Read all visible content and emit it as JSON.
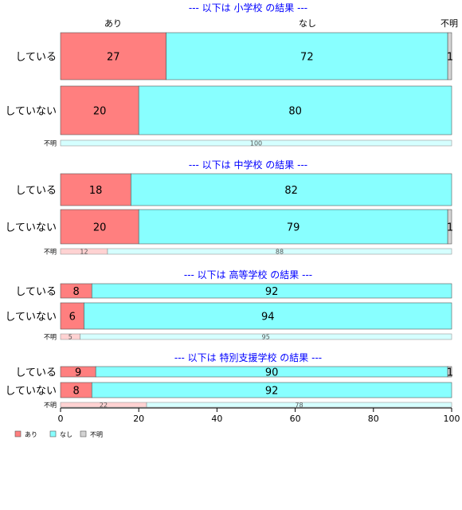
{
  "chart_data": {
    "type": "bar",
    "orientation": "horizontal",
    "stacked": true,
    "xlim": [
      0,
      100
    ],
    "x_ticks": [
      "0",
      "20",
      "40",
      "60",
      "80",
      "100"
    ],
    "grid": false,
    "legend_position": "bottom-left",
    "series_colors": {
      "あり": "#ff7f7f",
      "なし": "#88ffff",
      "不明": "#d3d3d3"
    },
    "series_names": [
      "あり",
      "なし",
      "不明"
    ],
    "top_labels": [
      "あり",
      "なし",
      "不明"
    ],
    "groups": [
      {
        "title": "--- 以下は 小学校 の結果 ---",
        "rows": [
          {
            "label": "している",
            "values": [
              27,
              72,
              1
            ],
            "labels": [
              "27",
              "72",
              "1"
            ]
          },
          {
            "label": "していない",
            "values": [
              20,
              80,
              0
            ],
            "labels": [
              "20",
              "80",
              ""
            ]
          },
          {
            "label": "不明",
            "small": true,
            "values": [
              0,
              100,
              0
            ],
            "labels": [
              "",
              "100",
              ""
            ]
          }
        ]
      },
      {
        "title": "--- 以下は 中学校 の結果 ---",
        "rows": [
          {
            "label": "している",
            "values": [
              18,
              82,
              0
            ],
            "labels": [
              "18",
              "82",
              ""
            ]
          },
          {
            "label": "していない",
            "values": [
              20,
              79,
              1
            ],
            "labels": [
              "20",
              "79",
              "1"
            ]
          },
          {
            "label": "不明",
            "small": true,
            "values": [
              12,
              88,
              0
            ],
            "labels": [
              "12",
              "88",
              ""
            ]
          }
        ]
      },
      {
        "title": "--- 以下は 高等学校 の結果 ---",
        "rows": [
          {
            "label": "している",
            "values": [
              8,
              92,
              0
            ],
            "labels": [
              "8",
              "92",
              ""
            ]
          },
          {
            "label": "していない",
            "values": [
              6,
              94,
              0
            ],
            "labels": [
              "6",
              "94",
              ""
            ]
          },
          {
            "label": "不明",
            "small": true,
            "values": [
              5,
              95,
              0
            ],
            "labels": [
              "5",
              "95",
              ""
            ]
          }
        ]
      },
      {
        "title": "--- 以下は 特別支援学校 の結果 ---",
        "rows": [
          {
            "label": "している",
            "values": [
              9,
              90,
              1
            ],
            "labels": [
              "9",
              "90",
              "1"
            ]
          },
          {
            "label": "していない",
            "values": [
              8,
              92,
              0
            ],
            "labels": [
              "8",
              "92",
              ""
            ]
          },
          {
            "label": "不明",
            "small": true,
            "values": [
              22,
              78,
              0
            ],
            "labels": [
              "22",
              "78",
              ""
            ]
          }
        ]
      }
    ]
  }
}
